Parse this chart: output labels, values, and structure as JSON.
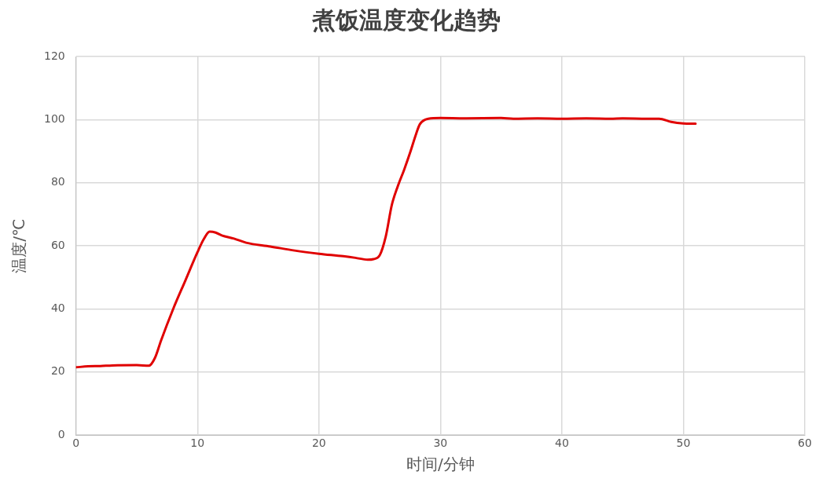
{
  "chart_data": {
    "type": "line",
    "title": "煮饭温度变化趋势",
    "xlabel": "时间/分钟",
    "ylabel": "温度/℃",
    "x": [
      0,
      1,
      2,
      3,
      5,
      6,
      6.5,
      7,
      8,
      9,
      10,
      10.5,
      11,
      11.5,
      12,
      13,
      14,
      16,
      18,
      20,
      22,
      23,
      24,
      24.5,
      25,
      25.5,
      26,
      26.5,
      27,
      27.5,
      28,
      28.3,
      29,
      30,
      32,
      35,
      36,
      38,
      40,
      42,
      44,
      45,
      47,
      48,
      49,
      50,
      51
    ],
    "series": [
      {
        "color": "#e00000",
        "values": [
          21.5,
          21.8,
          21.9,
          22.1,
          22.2,
          22,
          24.5,
          30,
          40,
          49,
          58,
          62,
          64.5,
          64.2,
          63.3,
          62.3,
          61,
          59.8,
          58.5,
          57.5,
          56.7,
          56.2,
          55.6,
          55.8,
          57,
          63,
          73,
          79,
          84,
          89.5,
          95.5,
          98.5,
          100.3,
          100.5,
          100.4,
          100.5,
          100.3,
          100.4,
          100.3,
          100.4,
          100.3,
          100.4,
          100.3,
          100.3,
          99.3,
          98.8,
          98.7
        ]
      }
    ],
    "xlim": [
      0,
      60
    ],
    "xticks": [
      0,
      10,
      20,
      30,
      40,
      50,
      60
    ],
    "ylim": [
      0,
      120
    ],
    "yticks": [
      0,
      20,
      40,
      60,
      80,
      100,
      120
    ],
    "grid": true,
    "legend": false,
    "marker": "none",
    "line_style": "solid"
  }
}
